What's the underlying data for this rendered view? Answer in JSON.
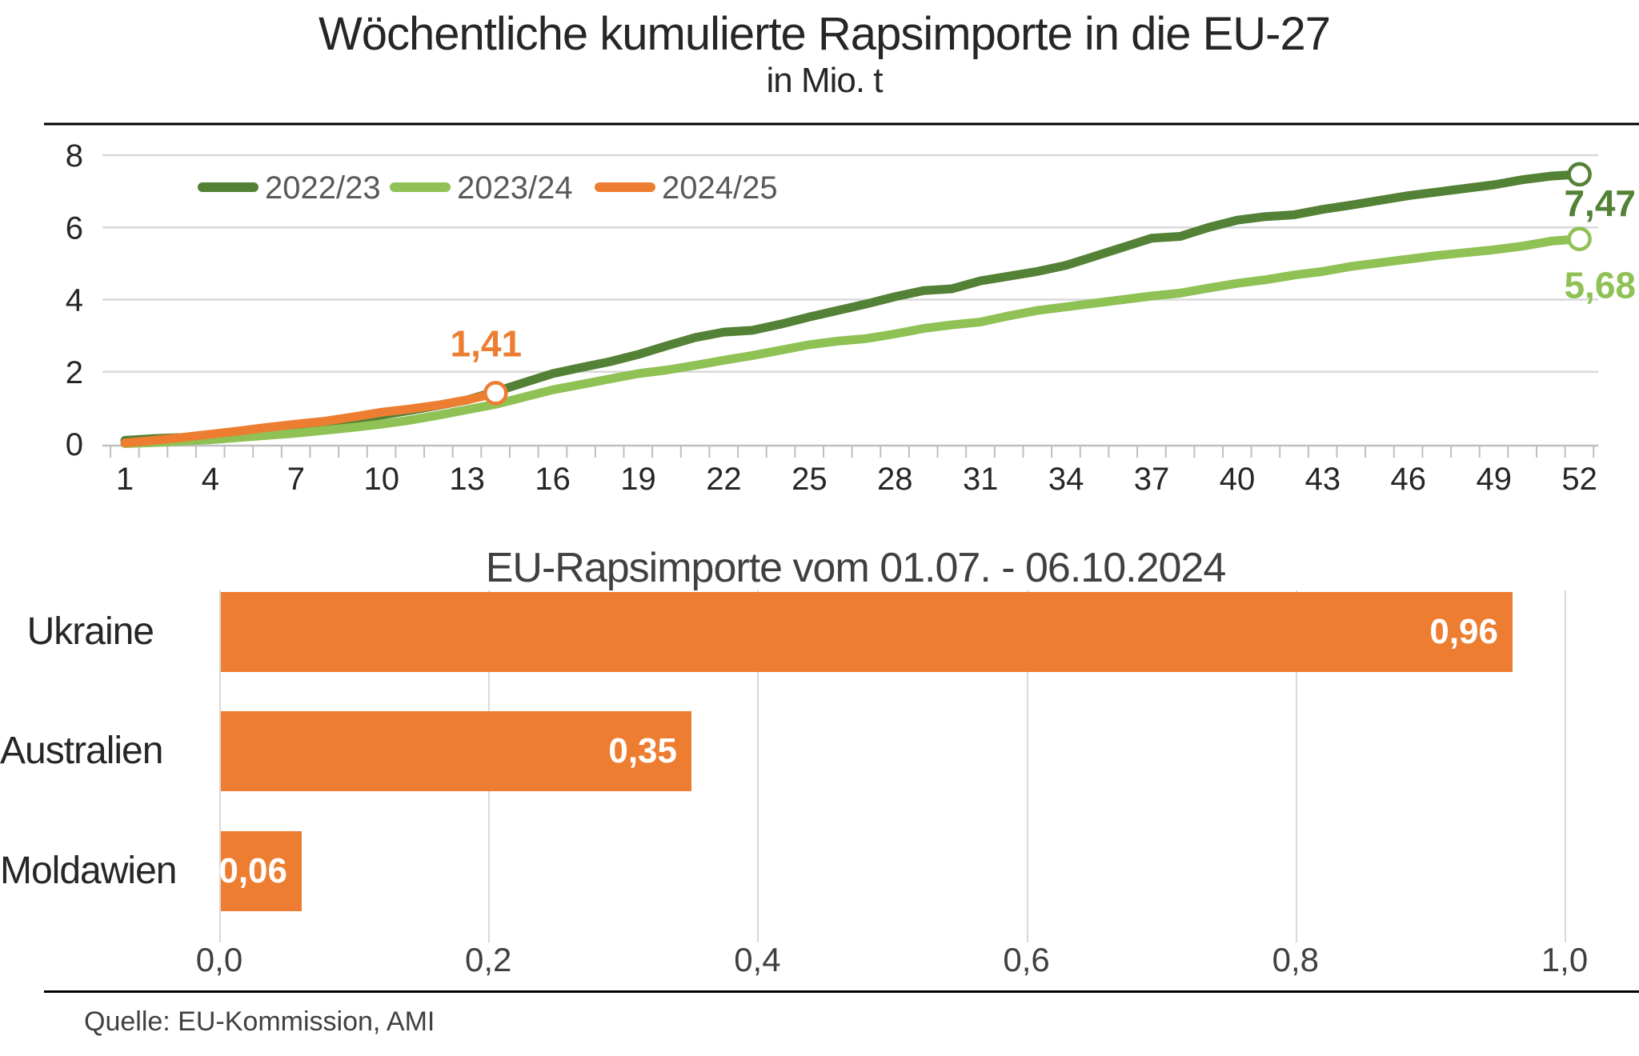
{
  "source": "Quelle: EU-Kommission, AMI",
  "colors": {
    "series_2022_23": "#538135",
    "series_2023_24": "#8FC155",
    "series_2024_25": "#ED7D31",
    "gridline": "#d9d9d9",
    "axis_line": "#bfbfbf",
    "legend_text": "#595959",
    "tick_text": "#262626",
    "bar_value_text": "#ffffff"
  },
  "chart_data": [
    {
      "type": "line",
      "title": "Wöchentliche kumulierte Rapsimporte in die EU-27",
      "subtitle": "in Mio. t",
      "xlabel": "",
      "ylabel": "",
      "ylim": [
        0,
        8
      ],
      "y_ticks": [
        0,
        2,
        4,
        6,
        8
      ],
      "x_range_weeks": [
        1,
        52
      ],
      "x_tick_labels": [
        "1",
        "4",
        "7",
        "10",
        "13",
        "16",
        "19",
        "22",
        "25",
        "28",
        "31",
        "34",
        "37",
        "40",
        "43",
        "46",
        "49",
        "52"
      ],
      "grid": "horizontal",
      "legend_position": "top-left-inside",
      "series": [
        {
          "name": "2022/23",
          "color": "#538135",
          "end_label": "7,47",
          "values": [
            0.1,
            0.15,
            0.18,
            0.23,
            0.3,
            0.38,
            0.47,
            0.57,
            0.68,
            0.8,
            0.93,
            1.07,
            1.22,
            1.45,
            1.7,
            1.95,
            2.12,
            2.28,
            2.48,
            2.72,
            2.95,
            3.1,
            3.15,
            3.32,
            3.52,
            3.7,
            3.88,
            4.08,
            4.25,
            4.3,
            4.52,
            4.65,
            4.78,
            4.95,
            5.2,
            5.45,
            5.7,
            5.75,
            6.0,
            6.2,
            6.3,
            6.35,
            6.5,
            6.62,
            6.75,
            6.88,
            6.98,
            7.08,
            7.18,
            7.32,
            7.42,
            7.47
          ]
        },
        {
          "name": "2023/24",
          "color": "#8FC155",
          "end_label": "5,68",
          "values": [
            0.01,
            0.04,
            0.08,
            0.12,
            0.18,
            0.24,
            0.3,
            0.38,
            0.46,
            0.55,
            0.66,
            0.8,
            0.95,
            1.1,
            1.3,
            1.5,
            1.65,
            1.8,
            1.95,
            2.05,
            2.18,
            2.32,
            2.45,
            2.6,
            2.75,
            2.85,
            2.92,
            3.05,
            3.2,
            3.3,
            3.38,
            3.55,
            3.7,
            3.8,
            3.9,
            4.0,
            4.1,
            4.18,
            4.32,
            4.45,
            4.55,
            4.68,
            4.78,
            4.92,
            5.02,
            5.12,
            5.22,
            5.3,
            5.38,
            5.48,
            5.62,
            5.68
          ]
        },
        {
          "name": "2024/25",
          "color": "#ED7D31",
          "end_label": "1,41",
          "values": [
            0.03,
            0.1,
            0.18,
            0.27,
            0.36,
            0.46,
            0.55,
            0.63,
            0.75,
            0.88,
            0.97,
            1.08,
            1.22,
            1.41
          ]
        }
      ]
    },
    {
      "type": "bar",
      "orientation": "horizontal",
      "title": "EU-Rapsimporte vom 01.07. - 06.10.2024",
      "categories": [
        "Ukraine",
        "Australien",
        "Moldawien"
      ],
      "values": [
        0.96,
        0.35,
        0.06
      ],
      "value_labels": [
        "0,96",
        "0,35",
        "0,06"
      ],
      "bar_color": "#ED7D31",
      "xlim": [
        0.0,
        1.0
      ],
      "x_ticks": [
        0.0,
        0.2,
        0.4,
        0.6,
        0.8,
        1.0
      ],
      "x_tick_labels": [
        "0,0",
        "0,2",
        "0,4",
        "0,6",
        "0,8",
        "1,0"
      ],
      "grid": "vertical"
    }
  ]
}
